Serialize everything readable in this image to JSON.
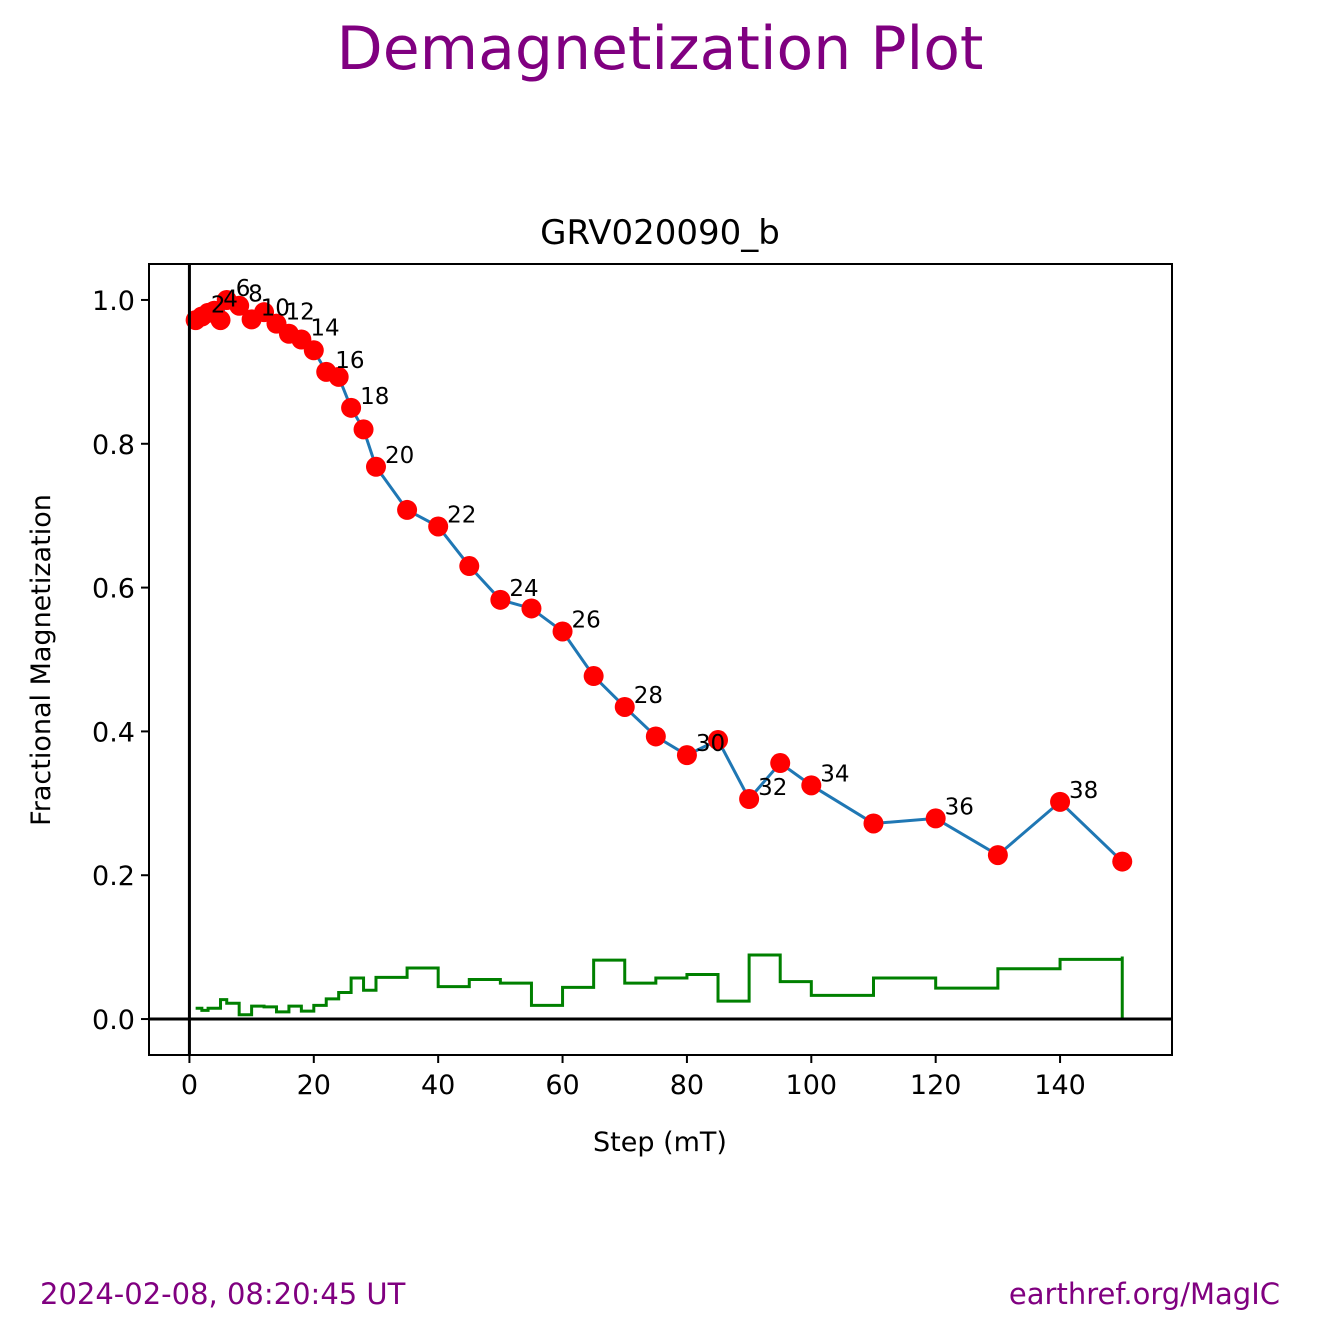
{
  "page": {
    "suptitle": "Demagnetization Plot",
    "timestamp": "2024-02-08, 08:20:45 UT",
    "credit": "earthref.org/MagIC"
  },
  "colors": {
    "title": "#800080",
    "line": "#1f77b4",
    "points": "#ff0000",
    "step": "#008000",
    "axes": "#000000"
  },
  "chart_data": {
    "type": "line",
    "title": "GRV020090_b",
    "xlabel": "Step (mT)",
    "ylabel": "Fractional Magnetization",
    "xlim": [
      -6.5,
      158
    ],
    "ylim": [
      -0.05,
      1.05
    ],
    "xticks": [
      0,
      20,
      40,
      60,
      80,
      100,
      120,
      140
    ],
    "yticks": [
      0.0,
      0.2,
      0.4,
      0.6,
      0.8,
      1.0
    ],
    "ytick_labels": [
      "0.0",
      "0.2",
      "0.4",
      "0.6",
      "0.8",
      "1.0"
    ],
    "grid": false,
    "series": [
      {
        "marker": "circle",
        "x": [
          1,
          2,
          3,
          4,
          5,
          6,
          8,
          10,
          12,
          14,
          16,
          18,
          20,
          22,
          24,
          26,
          28,
          30,
          35,
          40,
          45,
          50,
          55,
          60,
          65,
          70,
          75,
          80,
          85,
          90,
          95,
          100,
          110,
          120,
          130,
          140,
          150
        ],
        "y": [
          0.972,
          0.977,
          0.982,
          0.985,
          0.972,
          1.0,
          0.992,
          0.973,
          0.983,
          0.967,
          0.953,
          0.945,
          0.93,
          0.9,
          0.893,
          0.85,
          0.82,
          0.768,
          0.708,
          0.685,
          0.63,
          0.583,
          0.571,
          0.539,
          0.477,
          0.434,
          0.393,
          0.367,
          0.388,
          0.306,
          0.356,
          0.325,
          0.272,
          0.279,
          0.228,
          0.302,
          0.219
        ]
      },
      {
        "style": "step-post",
        "x": [
          1,
          2,
          3,
          4,
          5,
          6,
          8,
          10,
          12,
          14,
          16,
          18,
          20,
          22,
          24,
          26,
          28,
          30,
          35,
          40,
          45,
          50,
          55,
          60,
          65,
          70,
          75,
          80,
          85,
          90,
          95,
          100,
          110,
          120,
          130,
          140,
          150
        ],
        "y": [
          0.015,
          0.012,
          0.015,
          0.015,
          0.027,
          0.022,
          0.006,
          0.018,
          0.017,
          0.01,
          0.018,
          0.011,
          0.019,
          0.028,
          0.037,
          0.057,
          0.04,
          0.058,
          0.071,
          0.045,
          0.055,
          0.05,
          0.019,
          0.044,
          0.082,
          0.05,
          0.057,
          0.062,
          0.025,
          0.089,
          0.052,
          0.033,
          0.057,
          0.043,
          0.07,
          0.083,
          0.087
        ]
      }
    ],
    "annotations": [
      {
        "text": "2",
        "x": 2,
        "y": 0.977
      },
      {
        "text": "4",
        "x": 4,
        "y": 0.985
      },
      {
        "text": "6",
        "x": 6,
        "y": 1.0
      },
      {
        "text": "8",
        "x": 8,
        "y": 0.992
      },
      {
        "text": "10",
        "x": 10,
        "y": 0.973
      },
      {
        "text": "12",
        "x": 14,
        "y": 0.967
      },
      {
        "text": "14",
        "x": 18,
        "y": 0.945
      },
      {
        "text": "16",
        "x": 22,
        "y": 0.9
      },
      {
        "text": "18",
        "x": 26,
        "y": 0.85
      },
      {
        "text": "20",
        "x": 30,
        "y": 0.768
      },
      {
        "text": "22",
        "x": 40,
        "y": 0.685
      },
      {
        "text": "24",
        "x": 50,
        "y": 0.583
      },
      {
        "text": "26",
        "x": 60,
        "y": 0.539
      },
      {
        "text": "28",
        "x": 70,
        "y": 0.434
      },
      {
        "text": "30",
        "x": 80,
        "y": 0.367
      },
      {
        "text": "32",
        "x": 90,
        "y": 0.306
      },
      {
        "text": "34",
        "x": 100,
        "y": 0.325
      },
      {
        "text": "36",
        "x": 120,
        "y": 0.279
      },
      {
        "text": "38",
        "x": 140,
        "y": 0.302
      }
    ]
  }
}
